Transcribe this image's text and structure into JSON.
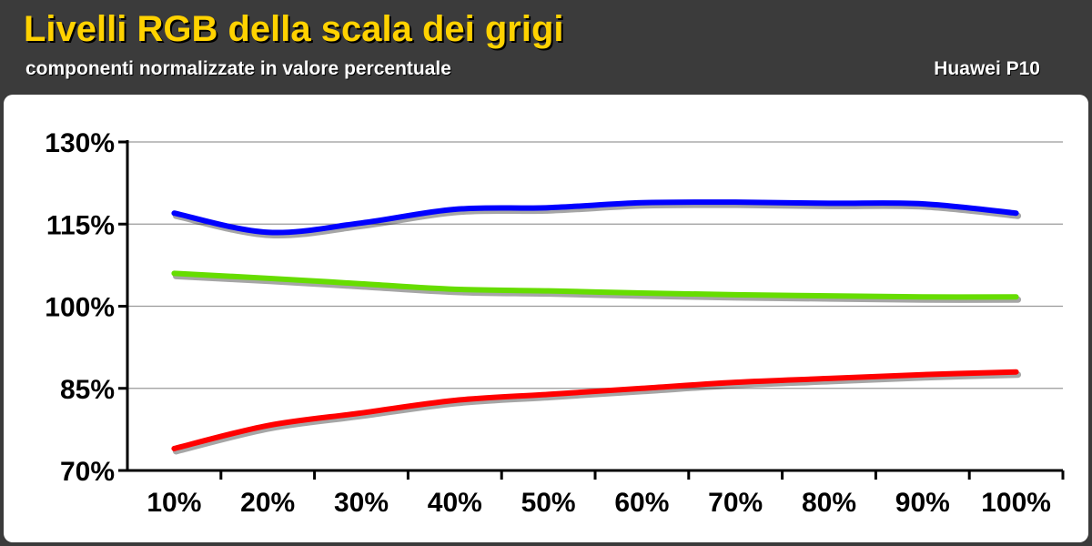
{
  "header": {
    "title": "Livelli RGB della scala dei grigi",
    "subtitle": "componenti normalizzate in valore percentuale",
    "device": "Huawei P10"
  },
  "colors": {
    "background": "#3b3b3b",
    "title": "#ffd200",
    "plot_background": "#ffffff",
    "gridline": "#9a9a9a"
  },
  "chart_data": {
    "type": "line",
    "title": "Livelli RGB della scala dei grigi",
    "subtitle": "componenti normalizzate in valore percentuale",
    "categories": [
      "10%",
      "20%",
      "30%",
      "40%",
      "50%",
      "60%",
      "70%",
      "80%",
      "90%",
      "100%"
    ],
    "y_ticks": [
      "70%",
      "85%",
      "100%",
      "115%",
      "130%"
    ],
    "ylim": [
      70,
      130
    ],
    "grid": true,
    "legend": "none",
    "series": [
      {
        "color": "#0000ff",
        "values": [
          117,
          113.5,
          115.2,
          117.7,
          118,
          118.9,
          119,
          118.8,
          118.7,
          117
        ]
      },
      {
        "color": "#66dd00",
        "values": [
          106,
          105.1,
          104.1,
          103.1,
          102.8,
          102.4,
          102.1,
          101.9,
          101.7,
          101.7
        ]
      },
      {
        "color": "#ff0000",
        "values": [
          74,
          78.2,
          80.5,
          82.8,
          83.9,
          85,
          86.1,
          86.8,
          87.5,
          88
        ]
      }
    ]
  }
}
